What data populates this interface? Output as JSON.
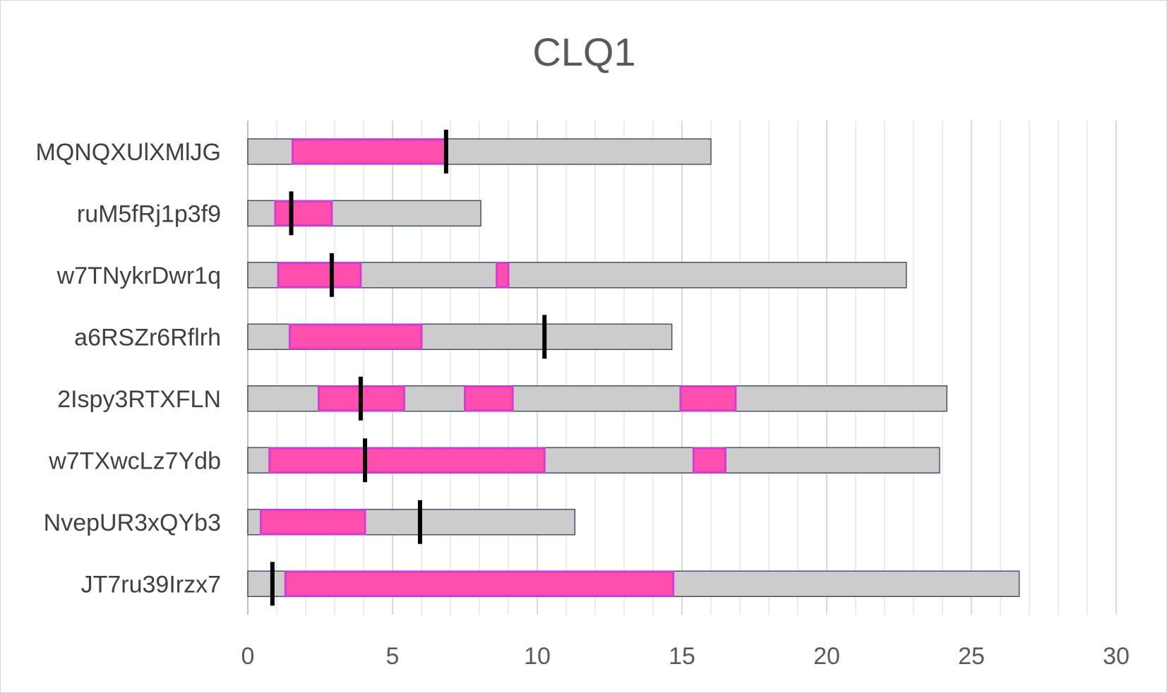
{
  "chart_data": {
    "type": "bar",
    "orientation": "horizontal",
    "title": "CLQ1",
    "xlabel": "",
    "ylabel": "",
    "xlim": [
      0,
      30
    ],
    "x_ticks": [
      0,
      5,
      10,
      15,
      20,
      25,
      30
    ],
    "grid": "vertical major and minor",
    "legend": "none",
    "colors": {
      "background_bar": "#cccccc",
      "background_stroke": "#44546a",
      "highlight": "#ff4fae",
      "highlight_stroke": "#d63bd6",
      "marker": "#000000",
      "grid_major": "#d9d9d9",
      "grid_minor": "#ececec"
    },
    "categories": [
      "MQNQXUlXMlJG",
      "ruM5fRj1p3f9",
      "w7TNykrDwr1q",
      "a6RSZr6Rflrh",
      "2Ispy3RTXFLN",
      "w7TXwcLz7Ydb",
      "NvepUR3xQYb3",
      "JT7ru39Irzx7"
    ],
    "rows": [
      {
        "name": "MQNQXUlXMlJG",
        "total": 16.0,
        "segments": [
          [
            1.55,
            6.85
          ]
        ],
        "marker": 6.85
      },
      {
        "name": "ruM5fRj1p3f9",
        "total": 8.05,
        "segments": [
          [
            0.95,
            2.9
          ]
        ],
        "marker": 1.5
      },
      {
        "name": "w7TNykrDwr1q",
        "total": 22.75,
        "segments": [
          [
            1.05,
            3.9
          ],
          [
            8.6,
            9.0
          ]
        ],
        "marker": 2.9
      },
      {
        "name": "a6RSZr6Rflrh",
        "total": 14.65,
        "segments": [
          [
            1.45,
            6.0
          ]
        ],
        "marker": 10.25
      },
      {
        "name": "2Ispy3RTXFLN",
        "total": 24.15,
        "segments": [
          [
            2.45,
            5.4
          ],
          [
            7.5,
            9.15
          ],
          [
            14.95,
            16.85
          ]
        ],
        "marker": 3.9
      },
      {
        "name": "w7TXwcLz7Ydb",
        "total": 23.9,
        "segments": [
          [
            0.75,
            10.25
          ],
          [
            15.4,
            16.5
          ]
        ],
        "marker": 4.05
      },
      {
        "name": "NvepUR3xQYb3",
        "total": 11.3,
        "segments": [
          [
            0.45,
            4.05
          ]
        ],
        "marker": 5.95
      },
      {
        "name": "JT7ru39Irzx7",
        "total": 26.65,
        "segments": [
          [
            1.3,
            14.7
          ]
        ],
        "marker": 0.85
      }
    ]
  }
}
